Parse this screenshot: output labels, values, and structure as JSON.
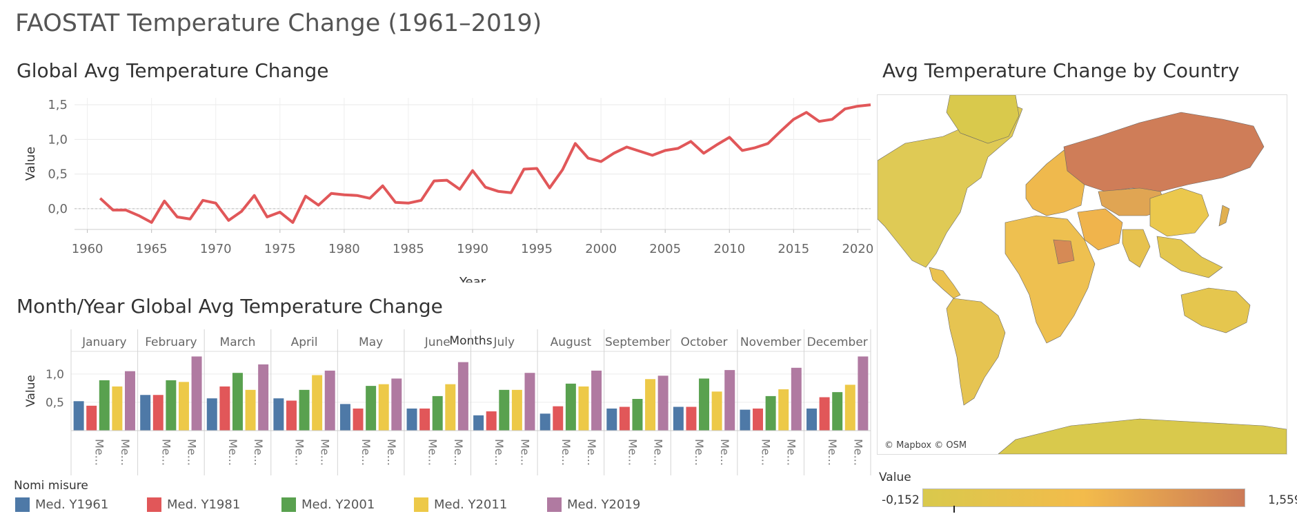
{
  "dashboard_title": "FAOSTAT Temperature Change (1961–2019)",
  "line_panel": {
    "title": "Global Avg Temperature Change"
  },
  "bar_panel": {
    "title": "Month/Year Global Avg Temperature Change"
  },
  "map_panel": {
    "title": "Avg Temperature Change by Country",
    "credit": "© Mapbox © OSM",
    "scale_title": "Value",
    "scale_min": "-0,152",
    "scale_max": "1,559",
    "scale_colors": [
      "#d9c94c",
      "#f3bb4b",
      "#cc7a57"
    ]
  },
  "legend": {
    "title": "Nomi misure",
    "items": [
      {
        "label": "Med. Y1961",
        "color": "#4e79a7"
      },
      {
        "label": "Med. Y1981",
        "color": "#e15759"
      },
      {
        "label": "Med. Y2001",
        "color": "#59a14f"
      },
      {
        "label": "Med. Y2011",
        "color": "#edc948"
      },
      {
        "label": "Med. Y2019",
        "color": "#b07aa1"
      }
    ]
  },
  "chart_data": [
    {
      "type": "line",
      "title": "Global Avg Temperature Change",
      "xlabel": "Year",
      "ylabel": "Value",
      "xlim": [
        1959,
        2021
      ],
      "ylim": [
        -0.3,
        1.6
      ],
      "x_ticks": [
        1960,
        1965,
        1970,
        1975,
        1980,
        1985,
        1990,
        1995,
        2000,
        2005,
        2010,
        2015,
        2020
      ],
      "y_ticks": [
        0.0,
        0.5,
        1.0,
        1.5
      ],
      "y_tick_labels": [
        "0,0",
        "0,5",
        "1,0",
        "1,5"
      ],
      "grid": true,
      "color": "#e15759",
      "x": [
        1961,
        1962,
        1963,
        1964,
        1965,
        1966,
        1967,
        1968,
        1969,
        1970,
        1971,
        1972,
        1973,
        1974,
        1975,
        1976,
        1977,
        1978,
        1979,
        1980,
        1981,
        1982,
        1983,
        1984,
        1985,
        1986,
        1987,
        1988,
        1989,
        1990,
        1991,
        1992,
        1993,
        1994,
        1995,
        1996,
        1997,
        1998,
        1999,
        2000,
        2001,
        2002,
        2003,
        2004,
        2005,
        2006,
        2007,
        2008,
        2009,
        2010,
        2011,
        2012,
        2013,
        2014,
        2015,
        2016,
        2017,
        2018,
        2019,
        2020,
        2021
      ],
      "y": [
        0.15,
        -0.02,
        -0.02,
        -0.1,
        -0.2,
        0.11,
        -0.12,
        -0.15,
        0.12,
        0.08,
        -0.17,
        -0.04,
        0.19,
        -0.12,
        -0.05,
        -0.2,
        0.18,
        0.05,
        0.22,
        0.2,
        0.19,
        0.15,
        0.33,
        0.09,
        0.08,
        0.12,
        0.4,
        0.41,
        0.28,
        0.55,
        0.31,
        0.25,
        0.23,
        0.57,
        0.58,
        0.3,
        0.56,
        0.94,
        0.73,
        0.68,
        0.8,
        0.89,
        0.83,
        0.77,
        0.84,
        0.87,
        0.97,
        0.8,
        0.92,
        1.03,
        0.84,
        0.88,
        0.94,
        1.12,
        1.29,
        1.39,
        1.26,
        1.29,
        1.44,
        1.48,
        1.5
      ]
    },
    {
      "type": "bar",
      "title": "Month/Year Global Avg Temperature Change",
      "xlabel": "Months",
      "ylabel": "Value",
      "ylim": [
        0,
        1.4
      ],
      "y_ticks": [
        0.5,
        1.0
      ],
      "y_tick_labels": [
        "0,5",
        "1,0"
      ],
      "category_axis_label": "Me...",
      "categories": [
        "January",
        "February",
        "March",
        "April",
        "May",
        "June",
        "July",
        "August",
        "September",
        "October",
        "November",
        "December"
      ],
      "series": [
        {
          "name": "Med. Y1961",
          "values": [
            0.52,
            0.63,
            0.57,
            0.57,
            0.47,
            0.39,
            0.27,
            0.3,
            0.39,
            0.42,
            0.37,
            0.39
          ]
        },
        {
          "name": "Med. Y1981",
          "values": [
            0.44,
            0.63,
            0.78,
            0.53,
            0.39,
            0.39,
            0.34,
            0.43,
            0.42,
            0.42,
            0.39,
            0.59
          ]
        },
        {
          "name": "Med. Y2001",
          "values": [
            0.89,
            0.89,
            1.02,
            0.72,
            0.79,
            0.61,
            0.72,
            0.83,
            0.56,
            0.92,
            0.61,
            0.68
          ]
        },
        {
          "name": "Med. Y2011",
          "values": [
            0.78,
            0.86,
            0.72,
            0.98,
            0.82,
            0.82,
            0.72,
            0.78,
            0.91,
            0.69,
            0.73,
            0.81
          ]
        },
        {
          "name": "Med. Y2019",
          "values": [
            1.05,
            1.31,
            1.17,
            1.06,
            0.92,
            1.21,
            1.02,
            1.06,
            0.97,
            1.07,
            1.11,
            1.31
          ]
        }
      ]
    }
  ]
}
